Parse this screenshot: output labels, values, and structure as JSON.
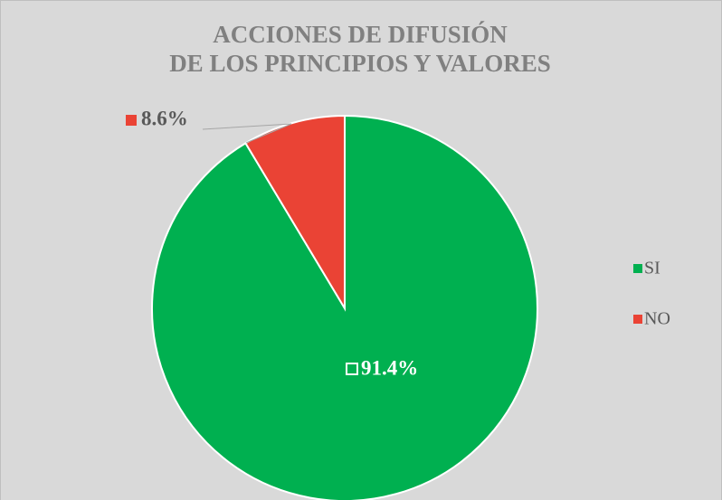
{
  "chart_data": {
    "type": "pie",
    "title": [
      "ACCIONES DE DIFUSIÓN",
      "DE LOS PRINCIPIOS Y VALORES"
    ],
    "categories": [
      "SI",
      "NO"
    ],
    "values": [
      91.4,
      8.6
    ],
    "value_labels": [
      "91.4%",
      "8.6%"
    ],
    "colors": [
      "#00b050",
      "#ea4335"
    ],
    "legend": "right"
  }
}
